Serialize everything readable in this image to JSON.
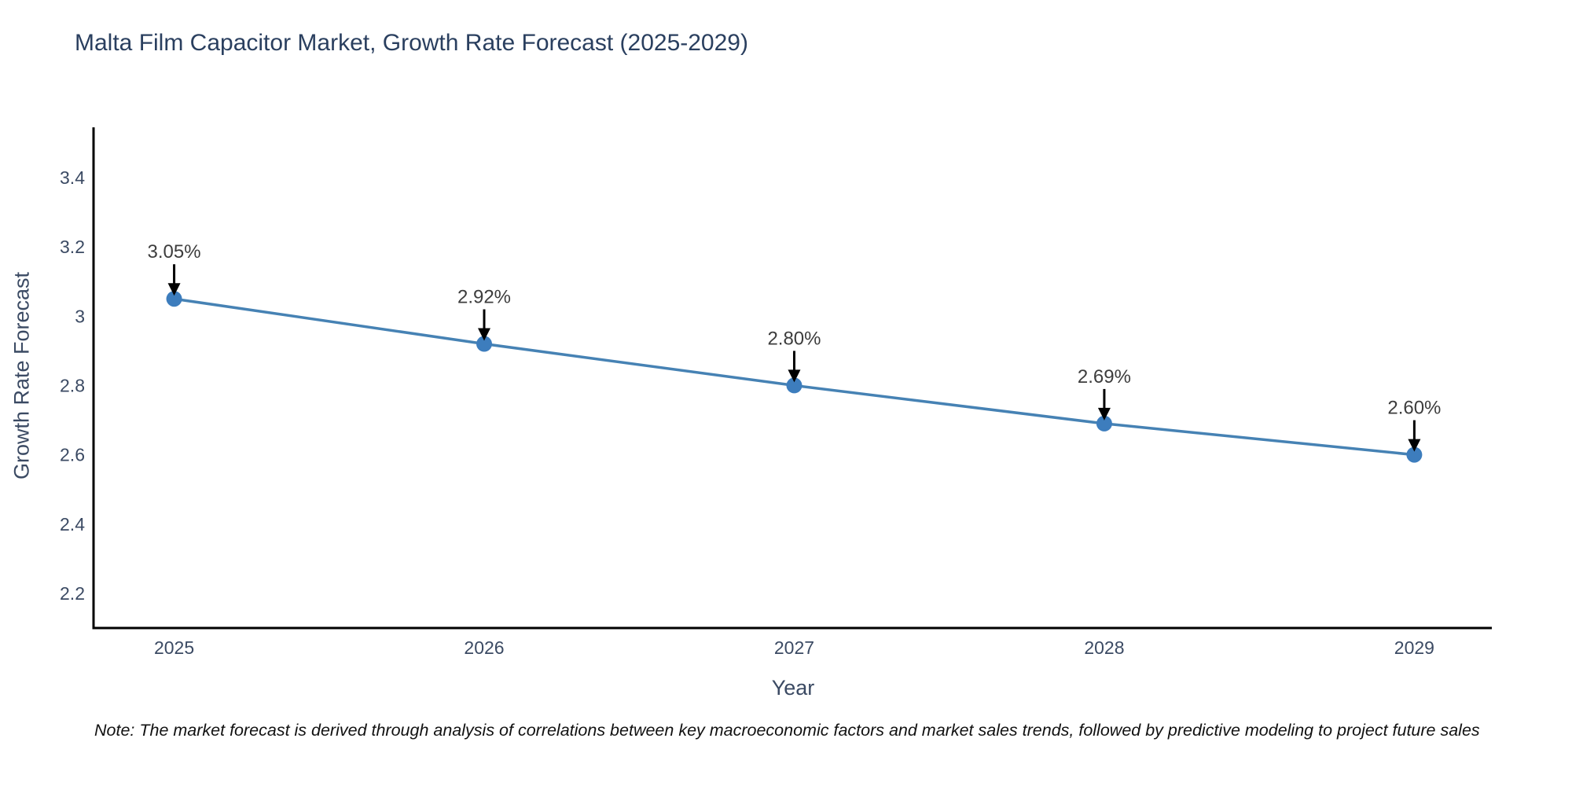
{
  "title": "Malta Film Capacitor Market, Growth Rate Forecast (2025-2029)",
  "note": "Note: The market forecast is derived through analysis of correlations between key macroeconomic factors and market sales trends, followed by predictive modeling to project future sales",
  "chart_data": {
    "type": "line",
    "title": "Malta Film Capacitor Market, Growth Rate Forecast (2025-2029)",
    "xlabel": "Year",
    "ylabel": "Growth Rate Forecast",
    "x": [
      2025,
      2026,
      2027,
      2028,
      2029
    ],
    "values": [
      3.05,
      2.92,
      2.8,
      2.69,
      2.6
    ],
    "point_labels": [
      "3.05%",
      "2.92%",
      "2.80%",
      "2.69%",
      "2.60%"
    ],
    "xtick_labels": [
      "2025",
      "2026",
      "2027",
      "2028",
      "2029"
    ],
    "yticks": [
      2.2,
      2.4,
      2.6,
      2.8,
      3,
      3.2,
      3.4
    ],
    "ytick_labels": [
      "2.2",
      "2.4",
      "2.6",
      "2.8",
      "3",
      "3.2",
      "3.4"
    ],
    "xlim": [
      2024.74,
      2029.25
    ],
    "ylim": [
      2.1,
      3.545
    ],
    "grid": false,
    "legend": "none",
    "colors": {
      "line": "#4682b4",
      "marker": "#3d7dbd",
      "axis": "#000000",
      "title_text": "#2a3f5f",
      "tick_text": "#3b4a63",
      "annotation_text": "#3d3d3d",
      "annotation_arrow": "#000000",
      "background": "#ffffff"
    }
  }
}
